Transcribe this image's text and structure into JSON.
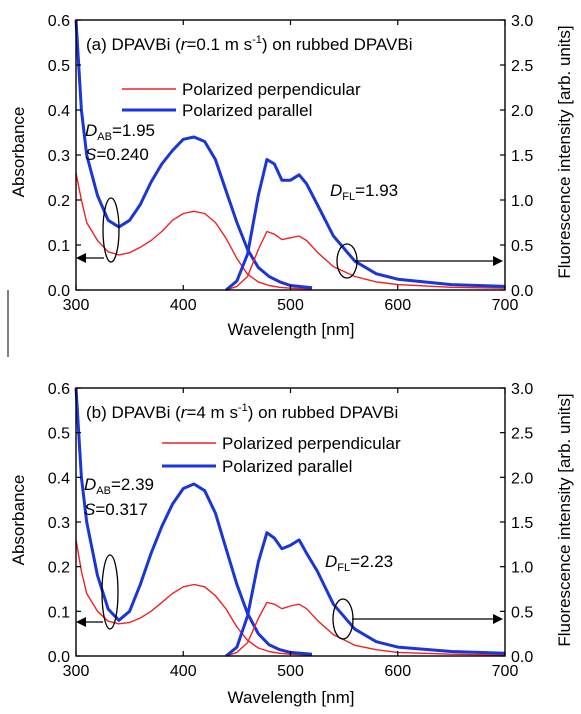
{
  "colors": {
    "perpendicular": "#ee2222",
    "parallel": "#1a35d8",
    "axes": "#000000"
  },
  "chart_data": [
    {
      "panel": "a",
      "type": "line",
      "title_parts": [
        "(a) DPAVBi (",
        "r",
        "=0.1 m s",
        "-1",
        ") on rubbed DPAVBi"
      ],
      "xlabel": "Wavelength [nm]",
      "ylabel": "Absorbance",
      "y2label": "Fluorescence intensity [arb. units]",
      "xlim": [
        300,
        700
      ],
      "ylim": [
        0,
        0.6
      ],
      "y2lim": [
        0,
        3.0
      ],
      "xticks": [
        "300",
        "400",
        "500",
        "600",
        "700"
      ],
      "yticks": [
        "0.0",
        "0.1",
        "0.2",
        "0.3",
        "0.4",
        "0.5",
        "0.6"
      ],
      "y2ticks": [
        "0.0",
        "0.5",
        "1.0",
        "1.5",
        "2.0",
        "2.5",
        "3.0"
      ],
      "legend": [
        "Polarized perpendicular",
        "Polarized parallel"
      ],
      "annotations": {
        "dab_label": "D",
        "dab_sub": "AB",
        "dab_value": "=1.95",
        "s_label": "S",
        "s_value": "=0.240",
        "dfl_label": "D",
        "dfl_sub": "FL",
        "dfl_value": "=1.93"
      },
      "series": [
        {
          "name": "Polarized perpendicular",
          "measure": "absorbance",
          "x": [
            300,
            305,
            310,
            320,
            330,
            340,
            350,
            360,
            370,
            380,
            390,
            400,
            410,
            420,
            430,
            440,
            450,
            460,
            470,
            480,
            490,
            500,
            510,
            520
          ],
          "y": [
            0.26,
            0.2,
            0.15,
            0.11,
            0.085,
            0.078,
            0.083,
            0.095,
            0.11,
            0.13,
            0.155,
            0.17,
            0.175,
            0.17,
            0.15,
            0.115,
            0.07,
            0.035,
            0.018,
            0.01,
            0.006,
            0.004,
            0.003,
            0.002
          ]
        },
        {
          "name": "Polarized parallel",
          "measure": "absorbance",
          "x": [
            300,
            305,
            310,
            320,
            330,
            340,
            350,
            360,
            370,
            380,
            390,
            400,
            410,
            420,
            430,
            440,
            450,
            460,
            470,
            480,
            490,
            500,
            520
          ],
          "y": [
            0.6,
            0.4,
            0.3,
            0.21,
            0.155,
            0.14,
            0.155,
            0.19,
            0.24,
            0.28,
            0.31,
            0.335,
            0.34,
            0.33,
            0.29,
            0.22,
            0.15,
            0.09,
            0.05,
            0.03,
            0.018,
            0.01,
            0.005
          ]
        },
        {
          "name": "Polarized perpendicular",
          "measure": "fluorescence",
          "x": [
            440,
            450,
            460,
            470,
            478,
            485,
            492,
            500,
            508,
            515,
            525,
            540,
            560,
            580,
            600,
            650,
            700
          ],
          "y": [
            0.0,
            0.04,
            0.15,
            0.45,
            0.65,
            0.62,
            0.56,
            0.58,
            0.6,
            0.55,
            0.42,
            0.26,
            0.15,
            0.09,
            0.06,
            0.03,
            0.02
          ]
        },
        {
          "name": "Polarized parallel",
          "measure": "fluorescence",
          "x": [
            440,
            450,
            460,
            470,
            478,
            485,
            492,
            500,
            508,
            515,
            525,
            540,
            560,
            580,
            600,
            650,
            700
          ],
          "y": [
            0.0,
            0.1,
            0.4,
            1.05,
            1.45,
            1.4,
            1.22,
            1.22,
            1.28,
            1.18,
            0.95,
            0.6,
            0.32,
            0.18,
            0.12,
            0.06,
            0.04
          ]
        }
      ]
    },
    {
      "panel": "b",
      "type": "line",
      "title_parts": [
        "(b) DPAVBi (",
        "r",
        "=4 m s",
        "-1",
        ") on rubbed DPAVBi"
      ],
      "xlabel": "Wavelength [nm]",
      "ylabel": "Absorbance",
      "y2label": "Fluorescence intensity [arb. units]",
      "xlim": [
        300,
        700
      ],
      "ylim": [
        0,
        0.6
      ],
      "y2lim": [
        0,
        3.0
      ],
      "xticks": [
        "300",
        "400",
        "500",
        "600",
        "700"
      ],
      "yticks": [
        "0.0",
        "0.1",
        "0.2",
        "0.3",
        "0.4",
        "0.5",
        "0.6"
      ],
      "y2ticks": [
        "0.0",
        "0.5",
        "1.0",
        "1.5",
        "2.0",
        "2.5",
        "3.0"
      ],
      "legend": [
        "Polarized perpendicular",
        "Polarized parallel"
      ],
      "annotations": {
        "dab_label": "D",
        "dab_sub": "AB",
        "dab_value": "=2.39",
        "s_label": "S",
        "s_value": "=0.317",
        "dfl_label": "D",
        "dfl_sub": "FL",
        "dfl_value": "=2.23"
      },
      "series": [
        {
          "name": "Polarized perpendicular",
          "measure": "absorbance",
          "x": [
            300,
            305,
            310,
            320,
            330,
            340,
            350,
            360,
            370,
            380,
            390,
            400,
            410,
            420,
            430,
            440,
            450,
            460,
            470,
            480,
            490,
            500,
            520
          ],
          "y": [
            0.26,
            0.19,
            0.14,
            0.1,
            0.078,
            0.072,
            0.075,
            0.085,
            0.1,
            0.12,
            0.14,
            0.155,
            0.16,
            0.155,
            0.135,
            0.105,
            0.065,
            0.035,
            0.018,
            0.01,
            0.006,
            0.004,
            0.002
          ]
        },
        {
          "name": "Polarized parallel",
          "measure": "absorbance",
          "x": [
            300,
            305,
            310,
            320,
            330,
            340,
            350,
            360,
            370,
            380,
            390,
            400,
            410,
            420,
            430,
            440,
            450,
            460,
            470,
            480,
            490,
            500,
            520
          ],
          "y": [
            0.6,
            0.4,
            0.3,
            0.18,
            0.105,
            0.08,
            0.1,
            0.16,
            0.23,
            0.29,
            0.34,
            0.375,
            0.385,
            0.37,
            0.32,
            0.24,
            0.16,
            0.095,
            0.05,
            0.025,
            0.014,
            0.008,
            0.004
          ]
        },
        {
          "name": "Polarized perpendicular",
          "measure": "fluorescence",
          "x": [
            440,
            450,
            460,
            470,
            478,
            485,
            492,
            500,
            508,
            515,
            525,
            540,
            560,
            580,
            600,
            650,
            700
          ],
          "y": [
            0.0,
            0.04,
            0.15,
            0.42,
            0.6,
            0.58,
            0.53,
            0.56,
            0.58,
            0.53,
            0.4,
            0.24,
            0.12,
            0.07,
            0.04,
            0.02,
            0.01
          ]
        },
        {
          "name": "Polarized parallel",
          "measure": "fluorescence",
          "x": [
            440,
            450,
            460,
            470,
            478,
            485,
            492,
            500,
            508,
            515,
            525,
            540,
            560,
            580,
            600,
            650,
            700
          ],
          "y": [
            0.0,
            0.1,
            0.45,
            1.05,
            1.38,
            1.32,
            1.2,
            1.24,
            1.3,
            1.15,
            0.95,
            0.58,
            0.3,
            0.16,
            0.1,
            0.05,
            0.03
          ]
        }
      ]
    }
  ]
}
